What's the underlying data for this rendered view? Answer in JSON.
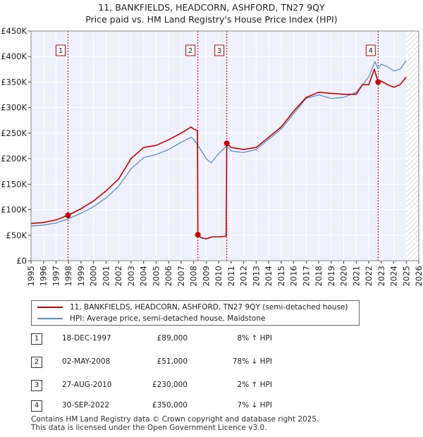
{
  "title_line1": "11, BANKFIELDS, HEADCORN, ASHFORD, TN27 9QY",
  "title_line2": "Price paid vs. HM Land Registry's House Price Index (HPI)",
  "chart_data": {
    "type": "line",
    "title": "Price paid vs. HM Land Registry's House Price Index (HPI)",
    "xlabel": "",
    "ylabel": "",
    "xlim": [
      1995,
      2026
    ],
    "ylim": [
      0,
      450000
    ],
    "y_ticks": [
      0,
      50000,
      100000,
      150000,
      200000,
      250000,
      300000,
      350000,
      400000,
      450000
    ],
    "y_tick_labels": [
      "£0",
      "£50K",
      "£100K",
      "£150K",
      "£200K",
      "£250K",
      "£300K",
      "£350K",
      "£400K",
      "£450K"
    ],
    "x_ticks": [
      1995,
      1996,
      1997,
      1998,
      1999,
      2000,
      2001,
      2002,
      2003,
      2004,
      2005,
      2006,
      2007,
      2008,
      2009,
      2010,
      2011,
      2012,
      2013,
      2014,
      2015,
      2016,
      2017,
      2018,
      2019,
      2020,
      2021,
      2022,
      2023,
      2024,
      2025,
      2026
    ],
    "x_tick_labels": [
      "1995",
      "1996",
      "1997",
      "1998",
      "1999",
      "2000",
      "2001",
      "2002",
      "2003",
      "2004",
      "2005",
      "2006",
      "2007",
      "2008",
      "2009",
      "2010",
      "2011",
      "2012",
      "2013",
      "2014",
      "2015",
      "2016",
      "2017",
      "2018",
      "2019",
      "2020",
      "2021",
      "2022",
      "2023",
      "2024",
      "2025",
      "2026"
    ],
    "grid": true,
    "hatched_future_from": 2025.0,
    "series": [
      {
        "name": "11, BANKFIELDS, HEADCORN, ASHFORD, TN27 9QY (semi-detached house)",
        "color": "#cc0000",
        "x": [
          1995.0,
          1996.0,
          1997.0,
          1997.96,
          1999.0,
          2000.0,
          2001.0,
          2002.0,
          2003.0,
          2004.0,
          2005.0,
          2006.0,
          2007.0,
          2007.8,
          2008.0,
          2008.3,
          2008.34,
          2008.6,
          2009.0,
          2009.5,
          2010.0,
          2010.6,
          2010.65,
          2011.0,
          2012.0,
          2013.0,
          2014.0,
          2015.0,
          2016.0,
          2017.0,
          2018.0,
          2019.0,
          2020.0,
          2021.0,
          2021.5,
          2022.0,
          2022.45,
          2022.75,
          2023.0,
          2023.5,
          2024.0,
          2024.5,
          2025.0
        ],
        "values": [
          73000,
          75000,
          80000,
          89000,
          102000,
          117000,
          137000,
          160000,
          200000,
          222000,
          226000,
          237000,
          250000,
          262000,
          258000,
          255000,
          51000,
          45000,
          43000,
          47000,
          47000,
          48000,
          230000,
          222000,
          218000,
          222000,
          242000,
          262000,
          293000,
          320000,
          330000,
          328000,
          326000,
          326000,
          345000,
          345000,
          375000,
          350000,
          352000,
          345000,
          340000,
          345000,
          360000
        ]
      },
      {
        "name": "HPI: Average price, semi-detached house, Maidstone",
        "color": "#5b8fd0",
        "x": [
          1995.0,
          1996.0,
          1997.0,
          1997.96,
          1999.0,
          2000.0,
          2001.0,
          2002.0,
          2003.0,
          2004.0,
          2005.0,
          2006.0,
          2007.0,
          2007.8,
          2008.0,
          2008.5,
          2009.0,
          2009.4,
          2010.0,
          2010.65,
          2011.0,
          2012.0,
          2013.0,
          2014.0,
          2015.0,
          2016.0,
          2017.0,
          2018.0,
          2019.0,
          2020.0,
          2021.0,
          2021.5,
          2022.0,
          2022.5,
          2022.75,
          2023.0,
          2023.5,
          2024.0,
          2024.5,
          2025.0
        ],
        "values": [
          68000,
          70000,
          74000,
          82000,
          93000,
          106000,
          123000,
          146000,
          180000,
          202000,
          208000,
          218000,
          232000,
          242000,
          238000,
          220000,
          200000,
          192000,
          210000,
          225000,
          215000,
          212000,
          218000,
          238000,
          258000,
          288000,
          318000,
          325000,
          318000,
          320000,
          330000,
          345000,
          360000,
          390000,
          376000,
          385000,
          380000,
          372000,
          375000,
          392000
        ]
      }
    ],
    "sales": [
      {
        "label": "1",
        "x": 1997.96,
        "value": 89000
      },
      {
        "label": "2",
        "x": 2008.34,
        "value": 51000
      },
      {
        "label": "3",
        "x": 2010.65,
        "value": 230000
      },
      {
        "label": "4",
        "x": 2022.75,
        "value": 350000
      }
    ]
  },
  "legend": {
    "red_label": "11, BANKFIELDS, HEADCORN, ASHFORD, TN27 9QY (semi-detached house)",
    "blue_label": "HPI: Average price, semi-detached house, Maidstone"
  },
  "sales_table": [
    {
      "num": "1",
      "date": "18-DEC-1997",
      "price": "£89,000",
      "hpi": "8% ↑ HPI"
    },
    {
      "num": "2",
      "date": "02-MAY-2008",
      "price": "£51,000",
      "hpi": "78% ↓ HPI"
    },
    {
      "num": "3",
      "date": "27-AUG-2010",
      "price": "£230,000",
      "hpi": "2% ↑ HPI"
    },
    {
      "num": "4",
      "date": "30-SEP-2022",
      "price": "£350,000",
      "hpi": "7% ↓ HPI"
    }
  ],
  "footer": {
    "line1": "Contains HM Land Registry data © Crown copyright and database right 2025.",
    "line2": "This data is licensed under the Open Government Licence v3.0."
  },
  "colors": {
    "plot_bg": "#eef0fb",
    "sale_line": "#cc0000",
    "hpi_line": "#5b8fd0"
  }
}
